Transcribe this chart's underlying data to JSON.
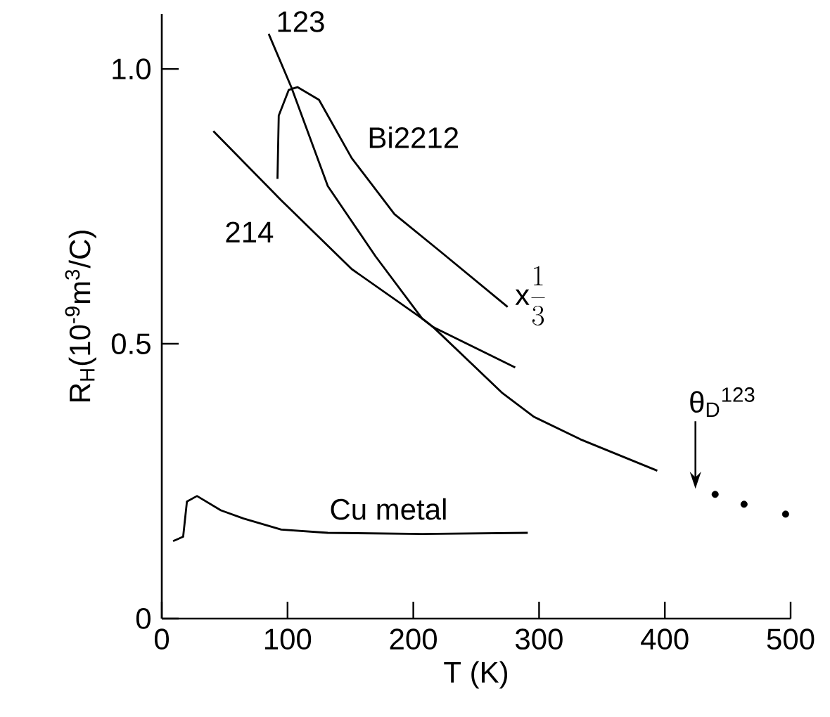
{
  "chart_data": {
    "type": "line",
    "xlabel": "T (K)",
    "ylabel": "R$_{H}$(10$^{-9}$m$^{3}$/C)",
    "xlim": [
      0,
      500
    ],
    "ylim": [
      0,
      1.1
    ],
    "xticks": [
      0,
      100,
      200,
      300,
      400,
      500
    ],
    "yticks": [
      0,
      {
        "value": 0.5,
        "label": "0.5"
      },
      {
        "value": 1,
        "label": "1.0"
      }
    ],
    "grid": false,
    "line_style": "solid",
    "series": [
      {
        "name": "123",
        "color": "#000000",
        "x": [
          85,
          103,
          132,
          170,
          207,
          216,
          271,
          296,
          333,
          394
        ],
        "values": [
          1.064,
          0.967,
          0.787,
          0.659,
          0.546,
          0.53,
          0.41,
          0.367,
          0.326,
          0.269
        ]
      },
      {
        "name": "214",
        "color": "#000000",
        "x": [
          41,
          95,
          151,
          207,
          216,
          281
        ],
        "values": [
          0.887,
          0.761,
          0.636,
          0.546,
          0.53,
          0.457
        ]
      },
      {
        "name": "Bi2212",
        "color": "#000000",
        "x": [
          92,
          93,
          101,
          108,
          125,
          151,
          185,
          222,
          275
        ],
        "values": [
          0.8,
          0.915,
          0.962,
          0.967,
          0.944,
          0.838,
          0.736,
          0.667,
          0.567
        ]
      },
      {
        "name": "Cu metal",
        "color": "#000000",
        "x": [
          9,
          17,
          20,
          28,
          47,
          65,
          95,
          132,
          207,
          291
        ],
        "values": [
          0.141,
          0.149,
          0.213,
          0.223,
          0.197,
          0.182,
          0.162,
          0.156,
          0.154,
          0.156
        ]
      },
      {
        "type": "scatter",
        "color": "#000000",
        "x": [
          440,
          463,
          496
        ],
        "values": [
          0.226,
          0.208,
          0.19
        ]
      }
    ],
    "annotations": [
      "\\mathrm{x}\\frac{1}{3}",
      "θ$_{D}$$^{123}$"
    ]
  }
}
